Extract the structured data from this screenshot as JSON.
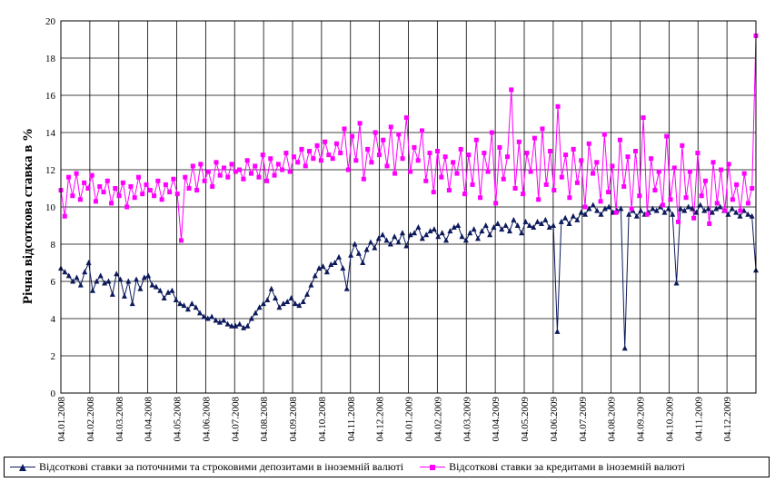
{
  "chart_data": {
    "type": "line",
    "ylabel": "Річна відсоткова ставка в %",
    "xlabel": "",
    "ylim": [
      0,
      20
    ],
    "y_ticks": [
      "0",
      "2",
      "4",
      "6",
      "8",
      "10",
      "12",
      "14",
      "16",
      "18",
      "20"
    ],
    "x_tick_labels": [
      "04.01.2008",
      "04.02.2008",
      "04.03.2008",
      "04.04.2008",
      "04.05.2008",
      "04.06.2008",
      "04.07.2008",
      "04.08.2008",
      "04.09.2008",
      "04.10.2008",
      "04.11.2008",
      "04.12.2008",
      "04.01.2009",
      "04.02.2009",
      "04.03.2009",
      "04.04.2009",
      "04.05.2009",
      "04.06.2009",
      "04.07.2009",
      "04.08.2009",
      "04.09.2009",
      "04.10.2009",
      "04.11.2009",
      "04.12.2009"
    ],
    "grid": true,
    "legend_position": "bottom",
    "x_unit": "month",
    "series": [
      {
        "name": "Відсоткові ставки за поточними та строковими депозитами в іноземній валюті",
        "color": "#0d1a5c",
        "marker": "triangle",
        "values": [
          6.7,
          6.5,
          6.3,
          6.0,
          6.2,
          5.8,
          6.5,
          7.0,
          5.5,
          6.0,
          6.3,
          5.9,
          6.0,
          5.3,
          6.4,
          6.1,
          5.2,
          6.0,
          4.8,
          6.1,
          5.6,
          6.2,
          6.3,
          5.8,
          5.7,
          5.5,
          5.1,
          5.4,
          5.5,
          5.0,
          4.8,
          4.7,
          4.5,
          4.8,
          4.6,
          4.3,
          4.1,
          4.0,
          4.1,
          3.9,
          3.8,
          3.9,
          3.7,
          3.6,
          3.6,
          3.7,
          3.5,
          3.6,
          4.0,
          4.3,
          4.6,
          4.8,
          5.0,
          5.6,
          5.1,
          4.6,
          4.8,
          4.9,
          5.1,
          4.8,
          4.7,
          4.9,
          5.3,
          5.8,
          6.3,
          6.7,
          6.8,
          6.5,
          6.9,
          7.0,
          7.3,
          6.7,
          5.6,
          7.4,
          8.0,
          7.5,
          7.0,
          7.7,
          8.1,
          7.8,
          8.3,
          8.5,
          8.2,
          8.0,
          8.4,
          8.1,
          8.6,
          7.9,
          8.5,
          8.6,
          8.9,
          8.3,
          8.5,
          8.7,
          8.8,
          8.4,
          8.6,
          8.2,
          8.7,
          8.9,
          9.0,
          8.4,
          8.2,
          8.6,
          8.8,
          8.3,
          8.7,
          9.0,
          8.5,
          8.9,
          9.1,
          8.8,
          9.0,
          8.7,
          9.3,
          9.0,
          8.6,
          9.2,
          9.0,
          8.9,
          9.2,
          9.1,
          9.3,
          8.9,
          9.0,
          3.3,
          9.2,
          9.4,
          9.1,
          9.5,
          9.3,
          9.7,
          9.6,
          9.9,
          10.1,
          9.8,
          9.6,
          9.9,
          10.0,
          9.7,
          9.8,
          9.9,
          2.4,
          9.6,
          9.8,
          9.5,
          9.8,
          9.6,
          9.7,
          9.9,
          9.8,
          10.0,
          9.7,
          9.9,
          9.6,
          5.9,
          9.9,
          9.8,
          10.0,
          9.9,
          9.7,
          10.1,
          9.8,
          9.9,
          9.7,
          9.9,
          10.0,
          9.8,
          9.6,
          9.9,
          9.7,
          9.5,
          9.8,
          9.6,
          9.5,
          6.6
        ]
      },
      {
        "name": "Відсоткові ставки за кредитами в іноземній валюті",
        "color": "#ff00ff",
        "marker": "square",
        "values": [
          10.9,
          9.5,
          11.6,
          10.6,
          11.8,
          10.4,
          11.3,
          11.0,
          11.7,
          10.3,
          11.1,
          10.8,
          11.4,
          10.2,
          11.0,
          10.6,
          11.3,
          10.0,
          11.1,
          10.5,
          11.6,
          10.7,
          11.2,
          10.9,
          10.6,
          11.4,
          10.4,
          11.2,
          10.8,
          11.5,
          10.7,
          8.2,
          11.6,
          11.0,
          12.2,
          10.9,
          12.3,
          11.4,
          11.9,
          11.1,
          12.4,
          11.7,
          12.1,
          11.6,
          12.3,
          11.9,
          12.0,
          11.5,
          12.5,
          11.8,
          12.2,
          11.6,
          12.8,
          11.4,
          12.6,
          11.7,
          12.3,
          12.0,
          12.9,
          11.9,
          12.7,
          12.4,
          13.1,
          12.2,
          13.0,
          12.6,
          13.3,
          12.5,
          13.5,
          12.8,
          12.6,
          13.4,
          12.9,
          14.2,
          12.0,
          13.8,
          12.5,
          14.5,
          11.5,
          13.1,
          12.4,
          14.0,
          12.8,
          13.6,
          12.2,
          14.3,
          11.8,
          13.9,
          12.6,
          14.8,
          11.9,
          13.2,
          12.5,
          14.1,
          11.4,
          12.9,
          10.8,
          13.0,
          11.6,
          12.7,
          10.9,
          12.4,
          11.8,
          13.1,
          10.7,
          12.8,
          11.2,
          13.6,
          10.5,
          12.9,
          11.9,
          14.0,
          10.2,
          13.2,
          11.5,
          12.7,
          16.3,
          11.0,
          13.5,
          10.7,
          12.9,
          11.9,
          13.7,
          10.4,
          14.2,
          11.2,
          13.0,
          10.9,
          15.4,
          11.6,
          12.8,
          10.5,
          13.1,
          11.3,
          12.5,
          10.0,
          13.4,
          11.8,
          12.4,
          10.3,
          13.9,
          10.8,
          12.2,
          9.7,
          13.6,
          11.1,
          12.7,
          9.9,
          13.0,
          10.6,
          14.8,
          9.6,
          12.6,
          10.9,
          11.9,
          10.1,
          13.8,
          10.4,
          12.1,
          9.2,
          13.3,
          10.5,
          11.9,
          9.4,
          12.9,
          10.6,
          11.4,
          9.1,
          12.4,
          10.2,
          12.0,
          9.8,
          12.3,
          10.4,
          11.2,
          9.8,
          11.8,
          10.2,
          11.0,
          19.2
        ]
      }
    ]
  }
}
